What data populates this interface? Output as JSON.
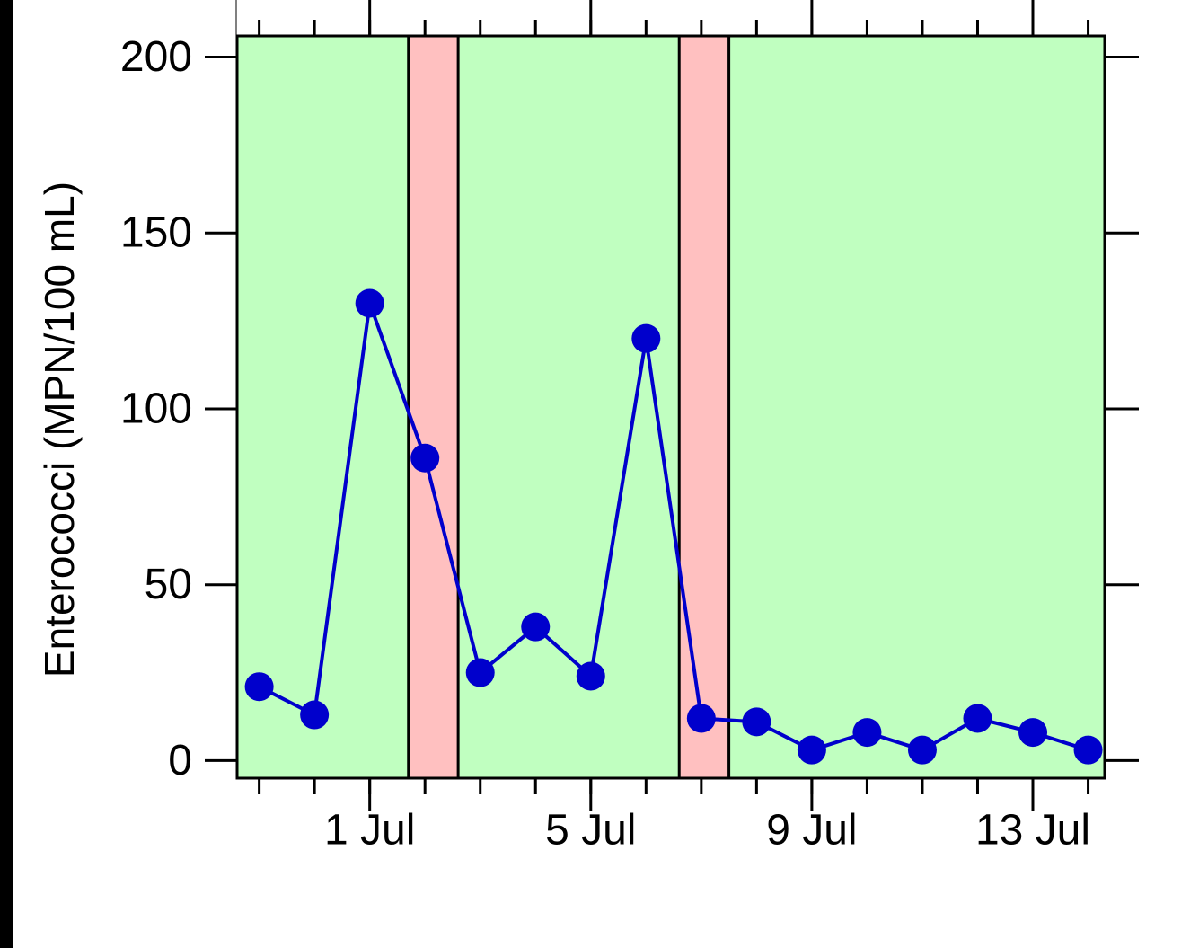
{
  "chart_data": {
    "type": "line",
    "title": "",
    "xlabel": "",
    "ylabel": "Enterococci (MPN/100 mL)",
    "x_tick_labels": [
      {
        "day": 1,
        "label": "1 Jul"
      },
      {
        "day": 5,
        "label": "5 Jul"
      },
      {
        "day": 9,
        "label": "9 Jul"
      },
      {
        "day": 13,
        "label": "13 Jul"
      }
    ],
    "x_minor_tick_days": [
      -1,
      0,
      1,
      2,
      3,
      4,
      5,
      6,
      7,
      8,
      9,
      10,
      11,
      12,
      13,
      14
    ],
    "y_ticks": [
      0,
      50,
      100,
      150,
      200
    ],
    "xlim": [
      -1.4,
      14.3
    ],
    "ylim": [
      -5,
      206
    ],
    "grid": false,
    "legend": "none",
    "shaded_periods": [
      {
        "start": -1.4,
        "end": 1.7,
        "color": "#c0ffc0"
      },
      {
        "start": 1.7,
        "end": 2.6,
        "color": "#ffc0c0"
      },
      {
        "start": 2.6,
        "end": 6.6,
        "color": "#c0ffc0"
      },
      {
        "start": 6.6,
        "end": 7.5,
        "color": "#ffc0c0"
      },
      {
        "start": 7.5,
        "end": 14.3,
        "color": "#c0ffc0"
      }
    ],
    "series": [
      {
        "color": "#0000cc",
        "x": [
          -1,
          0,
          1,
          2,
          3,
          4,
          5,
          6,
          7,
          8,
          9,
          10,
          11,
          12,
          13,
          14
        ],
        "y": [
          21,
          13,
          130,
          86,
          25,
          38,
          24,
          120,
          12,
          11,
          3,
          8,
          3,
          12,
          8,
          3
        ]
      }
    ]
  }
}
